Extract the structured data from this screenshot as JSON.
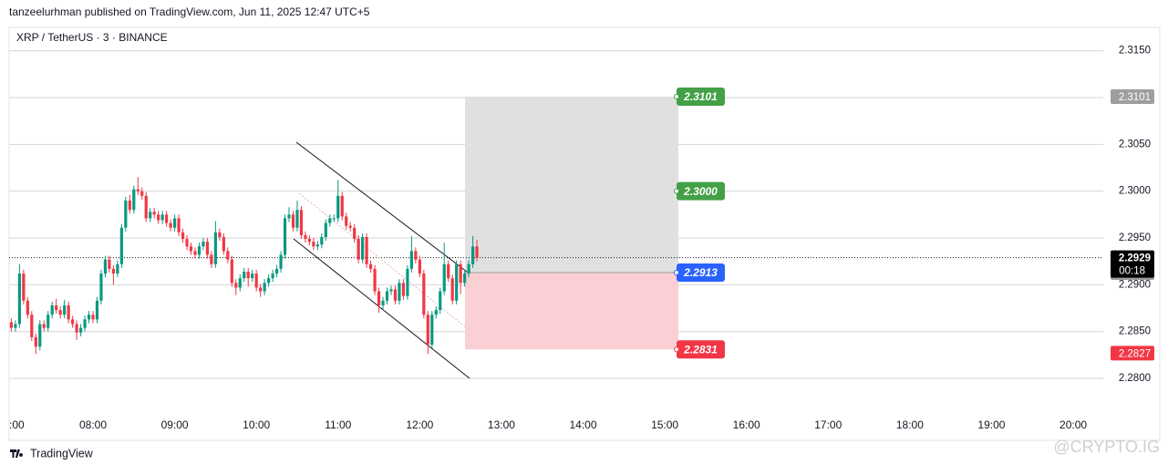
{
  "header": {
    "published": "tanzeelurhman published on TradingView.com, Jun 11, 2025 12:47 UTC+5"
  },
  "footer": {
    "brand": "TradingView",
    "watermark": "@CRYPTO.IG"
  },
  "chart_data": {
    "type": "candlestick",
    "title": "XRP / TetherUS · 3 · BINANCE",
    "x": [
      7,
      7.05,
      7.1,
      7.15,
      7.2,
      7.25,
      7.3,
      7.35,
      7.4,
      7.45,
      7.5,
      7.55,
      7.6,
      7.65,
      7.7,
      7.75,
      7.8,
      7.85,
      7.9,
      7.95,
      8,
      8.05,
      8.1,
      8.15,
      8.2,
      8.25,
      8.3,
      8.35,
      8.4,
      8.45,
      8.5,
      8.55,
      8.6,
      8.65,
      8.7,
      8.75,
      8.8,
      8.85,
      8.9,
      8.95,
      9,
      9.05,
      9.1,
      9.15,
      9.2,
      9.25,
      9.3,
      9.35,
      9.4,
      9.45,
      9.5,
      9.55,
      9.6,
      9.65,
      9.7,
      9.75,
      9.8,
      9.85,
      9.9,
      9.95,
      10,
      10.05,
      10.1,
      10.15,
      10.2,
      10.25,
      10.3,
      10.35,
      10.4,
      10.45,
      10.5,
      10.55,
      10.6,
      10.65,
      10.7,
      10.75,
      10.8,
      10.85,
      10.9,
      10.95,
      11,
      11.05,
      11.1,
      11.15,
      11.2,
      11.25,
      11.3,
      11.35,
      11.4,
      11.45,
      11.5,
      11.55,
      11.6,
      11.65,
      11.7,
      11.75,
      11.8,
      11.85,
      11.9,
      11.95,
      12,
      12.05,
      12.1,
      12.15,
      12.2,
      12.25,
      12.3,
      12.35,
      12.4,
      12.45,
      12.5,
      12.55,
      12.6,
      12.65,
      12.7
    ],
    "open": [
      2.286,
      2.2854,
      2.2858,
      2.2912,
      2.2883,
      2.2868,
      2.2844,
      2.2834,
      2.2858,
      2.2854,
      2.2868,
      2.2878,
      2.2873,
      2.2868,
      2.2878,
      2.2863,
      2.2858,
      2.2849,
      2.2854,
      2.2863,
      2.2868,
      2.2863,
      2.2883,
      2.2912,
      2.2927,
      2.2917,
      2.2912,
      2.2922,
      2.2961,
      2.299,
      2.298,
      2.3002,
      2.3,
      2.2995,
      2.2971,
      2.2978,
      2.2975,
      2.2969,
      2.2975,
      2.2966,
      2.2961,
      2.2971,
      2.2956,
      2.2949,
      2.2941,
      2.2936,
      2.2932,
      2.2941,
      2.2946,
      2.2932,
      2.2922,
      2.2956,
      2.2951,
      2.2936,
      2.2927,
      2.2902,
      2.2897,
      2.2907,
      2.2914,
      2.2907,
      2.2912,
      2.2897,
      2.2893,
      2.2902,
      2.2907,
      2.2912,
      2.2917,
      2.2932,
      2.2971,
      2.2975,
      2.2961,
      2.298,
      2.2953,
      2.2949,
      2.2946,
      2.2941,
      2.2943,
      2.2951,
      2.2966,
      2.2971,
      2.2971,
      2.2995,
      2.2973,
      2.2963,
      2.2961,
      2.2949,
      2.2927,
      2.2951,
      2.2922,
      2.2917,
      2.2893,
      2.2878,
      2.2883,
      2.2893,
      2.2895,
      2.2883,
      2.2902,
      2.2888,
      2.2917,
      2.2936,
      2.2927,
      2.2912,
      2.2868,
      2.2836,
      2.2868,
      2.2873,
      2.2893,
      2.2922,
      2.2907,
      2.2883,
      2.2922,
      2.2902,
      2.2912,
      2.2922,
      2.2941
    ],
    "high": [
      2.2864,
      2.2862,
      2.2922,
      2.2916,
      2.2887,
      2.2872,
      2.2848,
      2.2862,
      2.2862,
      2.2872,
      2.2882,
      2.2885,
      2.2877,
      2.2884,
      2.2882,
      2.2867,
      2.2862,
      2.2858,
      2.2867,
      2.2872,
      2.2872,
      2.2887,
      2.2916,
      2.2931,
      2.2931,
      2.2921,
      2.2926,
      2.2965,
      2.2994,
      2.2996,
      2.3006,
      2.3015,
      2.3004,
      2.2999,
      2.2982,
      2.2982,
      2.2979,
      2.2979,
      2.2979,
      2.297,
      2.2975,
      2.2975,
      2.296,
      2.2953,
      2.2945,
      2.294,
      2.2945,
      2.295,
      2.295,
      2.2936,
      2.2968,
      2.296,
      2.2955,
      2.294,
      2.2931,
      2.2906,
      2.2911,
      2.2918,
      2.2918,
      2.2916,
      2.2916,
      2.2901,
      2.2906,
      2.2911,
      2.2916,
      2.2921,
      2.2936,
      2.2975,
      2.2983,
      2.2979,
      2.299,
      2.2984,
      2.2957,
      2.2953,
      2.295,
      2.2947,
      2.2955,
      2.297,
      2.2975,
      2.2975,
      2.3012,
      2.2999,
      2.2977,
      2.2967,
      2.2965,
      2.2953,
      2.2955,
      2.2955,
      2.2926,
      2.2921,
      2.2897,
      2.2887,
      2.2897,
      2.2899,
      2.2899,
      2.2906,
      2.2906,
      2.2921,
      2.2952,
      2.294,
      2.2931,
      2.2916,
      2.2872,
      2.2872,
      2.2877,
      2.2897,
      2.2945,
      2.2926,
      2.2911,
      2.2926,
      2.2926,
      2.2916,
      2.2926,
      2.2952,
      2.2948
    ],
    "low": [
      2.285,
      2.285,
      2.2854,
      2.2879,
      2.2864,
      2.284,
      2.2826,
      2.283,
      2.285,
      2.285,
      2.2864,
      2.2869,
      2.2864,
      2.2864,
      2.2859,
      2.2854,
      2.2841,
      2.2845,
      2.285,
      2.2859,
      2.2859,
      2.2859,
      2.2879,
      2.2908,
      2.2913,
      2.29,
      2.2908,
      2.2918,
      2.2957,
      2.2976,
      2.2976,
      2.2996,
      2.2991,
      2.2967,
      2.2967,
      2.2971,
      2.2965,
      2.2965,
      2.2962,
      2.2957,
      2.2957,
      2.2952,
      2.2945,
      2.2937,
      2.2932,
      2.2928,
      2.2928,
      2.2937,
      2.2928,
      2.2918,
      2.2918,
      2.2947,
      2.2932,
      2.2923,
      2.2898,
      2.2889,
      2.2893,
      2.2903,
      2.2898,
      2.2903,
      2.2893,
      2.2887,
      2.2889,
      2.2898,
      2.2903,
      2.2908,
      2.2913,
      2.2928,
      2.2967,
      2.2957,
      2.2957,
      2.2949,
      2.2945,
      2.2942,
      2.2937,
      2.2937,
      2.2939,
      2.2947,
      2.2962,
      2.2967,
      2.2967,
      2.2969,
      2.2959,
      2.2957,
      2.2945,
      2.2923,
      2.2923,
      2.2918,
      2.2913,
      2.2889,
      2.287,
      2.2874,
      2.2879,
      2.2889,
      2.2879,
      2.2879,
      2.2884,
      2.2884,
      2.2913,
      2.2923,
      2.2908,
      2.2864,
      2.2826,
      2.2832,
      2.2864,
      2.2869,
      2.2889,
      2.2903,
      2.2879,
      2.2879,
      2.289,
      2.2898,
      2.2908,
      2.2918,
      2.2925
    ],
    "close": [
      2.2854,
      2.2858,
      2.2912,
      2.2883,
      2.2868,
      2.2844,
      2.2834,
      2.2858,
      2.2854,
      2.2868,
      2.2878,
      2.2873,
      2.2868,
      2.2878,
      2.2863,
      2.2858,
      2.2849,
      2.2854,
      2.2863,
      2.2868,
      2.2863,
      2.2883,
      2.2912,
      2.2927,
      2.2917,
      2.2912,
      2.2922,
      2.2961,
      2.299,
      2.298,
      2.3002,
      2.3,
      2.2995,
      2.2971,
      2.2978,
      2.2975,
      2.2969,
      2.2975,
      2.2966,
      2.2961,
      2.2971,
      2.2956,
      2.2949,
      2.2941,
      2.2936,
      2.2932,
      2.2941,
      2.2946,
      2.2932,
      2.2922,
      2.2956,
      2.2951,
      2.2936,
      2.2927,
      2.2902,
      2.2897,
      2.2907,
      2.2914,
      2.2907,
      2.2912,
      2.2897,
      2.2893,
      2.2902,
      2.2907,
      2.2912,
      2.2917,
      2.2932,
      2.2971,
      2.2975,
      2.2961,
      2.298,
      2.2953,
      2.2949,
      2.2946,
      2.2941,
      2.2943,
      2.2951,
      2.2966,
      2.2971,
      2.2971,
      2.2995,
      2.2973,
      2.2963,
      2.2961,
      2.2949,
      2.2927,
      2.2951,
      2.2922,
      2.2917,
      2.2893,
      2.2878,
      2.2883,
      2.2893,
      2.2895,
      2.2883,
      2.2902,
      2.2888,
      2.2917,
      2.2936,
      2.2927,
      2.2912,
      2.2868,
      2.2836,
      2.2868,
      2.2873,
      2.2893,
      2.2922,
      2.2907,
      2.2883,
      2.2922,
      2.2902,
      2.2912,
      2.2922,
      2.2941,
      2.2929
    ],
    "colors": {
      "up": "#089981",
      "down": "#f23645"
    },
    "xlim": [
      6.973,
      20.368
    ],
    "xticks": [
      {
        "value": 7,
        "label": ":00"
      },
      {
        "value": 8,
        "label": "08:00"
      },
      {
        "value": 9,
        "label": "09:00"
      },
      {
        "value": 10,
        "label": "10:00"
      },
      {
        "value": 11,
        "label": "11:00"
      },
      {
        "value": 12,
        "label": "12:00"
      },
      {
        "value": 13,
        "label": "13:00"
      },
      {
        "value": 14,
        "label": "14:00"
      },
      {
        "value": 15,
        "label": "15:00"
      },
      {
        "value": 16,
        "label": "16:00"
      },
      {
        "value": 17,
        "label": "17:00"
      },
      {
        "value": 18,
        "label": "18:00"
      },
      {
        "value": 19,
        "label": "19:00"
      },
      {
        "value": 20,
        "label": "20:00"
      }
    ],
    "ylim": [
      2.2764,
      2.3175
    ],
    "yticks": [
      {
        "value": 2.28,
        "label": "2.2800"
      },
      {
        "value": 2.285,
        "label": "2.2850"
      },
      {
        "value": 2.29,
        "label": "2.2900"
      },
      {
        "value": 2.295,
        "label": "2.2950"
      },
      {
        "value": 2.3,
        "label": "2.3000"
      },
      {
        "value": 2.305,
        "label": "2.3050"
      },
      {
        "value": 2.31,
        "label": "2.3100"
      },
      {
        "value": 2.315,
        "label": "2.3150"
      }
    ],
    "grid": true,
    "levels": [
      {
        "value": 2.3101,
        "color": "#43a047"
      },
      {
        "value": 2.3,
        "label": "2.3000",
        "color": "#43a047"
      },
      {
        "value": 2.2913,
        "color": "#2962ff"
      },
      {
        "value": 2.2831,
        "color": "#f23645"
      }
    ],
    "target_zone_color": "#e0e0e0",
    "stop_zone_color": "#fad0d4",
    "axis_badges": [
      {
        "value": 2.3101,
        "color": "#9e9e9e"
      },
      {
        "value": 2.2913,
        "color": "#9e9e9e"
      },
      {
        "value": 2.2827,
        "color": "#f23645"
      }
    ],
    "last_price": {
      "value": 2.2929,
      "countdown": "00:18",
      "color": "#000000"
    }
  }
}
